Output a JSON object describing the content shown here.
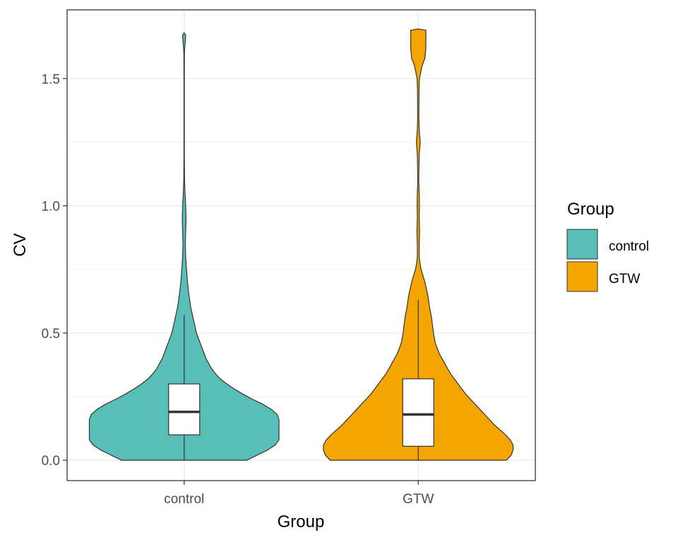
{
  "chart_data": {
    "type": "violin",
    "xlabel": "Group",
    "ylabel": "CV",
    "ylim": [
      -0.08,
      1.77
    ],
    "yticks": [
      0.0,
      0.5,
      1.0,
      1.5
    ],
    "ytick_labels": [
      "0.0",
      "0.5",
      "1.0",
      "1.5"
    ],
    "categories": [
      "control",
      "GTW"
    ],
    "grid": true,
    "legend": {
      "title": "Group",
      "position": "right",
      "entries": [
        {
          "label": "control",
          "color": "#59BDB8"
        },
        {
          "label": "GTW",
          "color": "#F4A500"
        }
      ]
    },
    "series": [
      {
        "category": "control",
        "color": "#59BDB8",
        "box": {
          "whisker_low": 0.0,
          "q1": 0.1,
          "median": 0.19,
          "q3": 0.3,
          "whisker_high": 0.57
        },
        "density_profile": [
          [
            0.0,
            0.66
          ],
          [
            0.02,
            0.77
          ],
          [
            0.04,
            0.88
          ],
          [
            0.06,
            0.96
          ],
          [
            0.08,
            1.0
          ],
          [
            0.1,
            1.0
          ],
          [
            0.12,
            1.0
          ],
          [
            0.14,
            1.0
          ],
          [
            0.16,
            1.0
          ],
          [
            0.18,
            0.98
          ],
          [
            0.2,
            0.92
          ],
          [
            0.22,
            0.83
          ],
          [
            0.24,
            0.72
          ],
          [
            0.26,
            0.62
          ],
          [
            0.28,
            0.53
          ],
          [
            0.3,
            0.45
          ],
          [
            0.32,
            0.38
          ],
          [
            0.34,
            0.33
          ],
          [
            0.36,
            0.29
          ],
          [
            0.38,
            0.26
          ],
          [
            0.4,
            0.23
          ],
          [
            0.42,
            0.21
          ],
          [
            0.44,
            0.19
          ],
          [
            0.46,
            0.17
          ],
          [
            0.48,
            0.15
          ],
          [
            0.5,
            0.13
          ],
          [
            0.55,
            0.1
          ],
          [
            0.6,
            0.07
          ],
          [
            0.65,
            0.05
          ],
          [
            0.7,
            0.035
          ],
          [
            0.75,
            0.025
          ],
          [
            0.8,
            0.016
          ],
          [
            0.85,
            0.012
          ],
          [
            0.9,
            0.016
          ],
          [
            0.95,
            0.02
          ],
          [
            1.0,
            0.016
          ],
          [
            1.05,
            0.009
          ],
          [
            1.1,
            0.004
          ],
          [
            1.2,
            0.002
          ],
          [
            1.3,
            0.002
          ],
          [
            1.4,
            0.002
          ],
          [
            1.5,
            0.002
          ],
          [
            1.6,
            0.003
          ],
          [
            1.65,
            0.012
          ],
          [
            1.67,
            0.016
          ],
          [
            1.68,
            0.0
          ]
        ]
      },
      {
        "category": "GTW",
        "color": "#F4A500",
        "box": {
          "whisker_low": 0.0,
          "q1": 0.055,
          "median": 0.18,
          "q3": 0.32,
          "whisker_high": 0.63
        },
        "density_profile": [
          [
            0.0,
            0.93
          ],
          [
            0.02,
            0.98
          ],
          [
            0.04,
            1.0
          ],
          [
            0.06,
            1.0
          ],
          [
            0.08,
            0.97
          ],
          [
            0.1,
            0.92
          ],
          [
            0.12,
            0.86
          ],
          [
            0.14,
            0.8
          ],
          [
            0.16,
            0.75
          ],
          [
            0.18,
            0.7
          ],
          [
            0.2,
            0.65
          ],
          [
            0.22,
            0.6
          ],
          [
            0.24,
            0.55
          ],
          [
            0.26,
            0.5
          ],
          [
            0.28,
            0.46
          ],
          [
            0.3,
            0.42
          ],
          [
            0.32,
            0.38
          ],
          [
            0.34,
            0.34
          ],
          [
            0.36,
            0.31
          ],
          [
            0.38,
            0.28
          ],
          [
            0.4,
            0.25
          ],
          [
            0.42,
            0.22
          ],
          [
            0.44,
            0.2
          ],
          [
            0.46,
            0.18
          ],
          [
            0.48,
            0.17
          ],
          [
            0.5,
            0.16
          ],
          [
            0.53,
            0.15
          ],
          [
            0.56,
            0.14
          ],
          [
            0.6,
            0.12
          ],
          [
            0.65,
            0.1
          ],
          [
            0.7,
            0.07
          ],
          [
            0.75,
            0.03
          ],
          [
            0.78,
            0.015
          ],
          [
            0.8,
            0.01
          ],
          [
            0.85,
            0.01
          ],
          [
            0.9,
            0.014
          ],
          [
            0.95,
            0.01
          ],
          [
            1.0,
            0.012
          ],
          [
            1.05,
            0.01
          ],
          [
            1.1,
            0.005
          ],
          [
            1.2,
            0.01
          ],
          [
            1.25,
            0.02
          ],
          [
            1.3,
            0.01
          ],
          [
            1.35,
            0.006
          ],
          [
            1.45,
            0.008
          ],
          [
            1.5,
            0.012
          ],
          [
            1.55,
            0.04
          ],
          [
            1.58,
            0.07
          ],
          [
            1.62,
            0.08
          ],
          [
            1.66,
            0.08
          ],
          [
            1.69,
            0.08
          ],
          [
            1.695,
            0.0
          ]
        ]
      }
    ]
  }
}
